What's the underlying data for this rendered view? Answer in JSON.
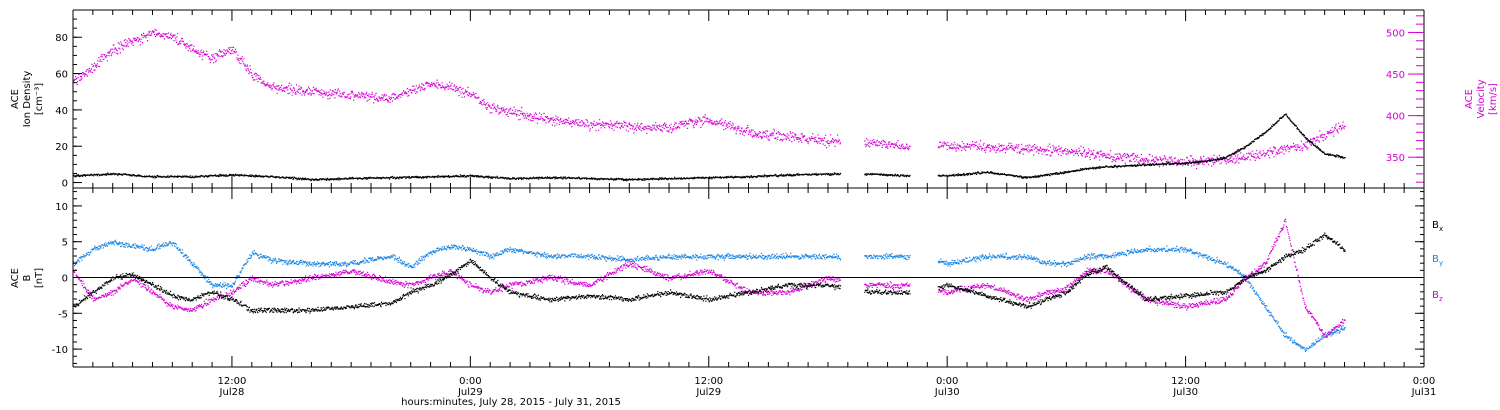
{
  "figure": {
    "xlabel": "hours:minutes, July 28, 2015 - July 31, 2015",
    "x_start_hour": 4,
    "x_end_hour": 72,
    "ticks": [
      {
        "hour": 12,
        "time": "12:00",
        "date": "Jul28"
      },
      {
        "hour": 24,
        "time": "0:00",
        "date": "Jul29"
      },
      {
        "hour": 36,
        "time": "12:00",
        "date": "Jul29"
      },
      {
        "hour": 48,
        "time": "0:00",
        "date": "Jul30"
      },
      {
        "hour": 60,
        "time": "12:00",
        "date": "Jul30"
      },
      {
        "hour": 72,
        "time": "0:00",
        "date": "Jul31"
      }
    ]
  },
  "chart_data": [
    {
      "type": "scatter",
      "title": "",
      "ylabel_lines": [
        "ACE",
        "Ion Density",
        "[cm⁻³]"
      ],
      "y2label_lines": [
        "ACE",
        "Velocity",
        "[km/s]"
      ],
      "ylim": [
        -3,
        95
      ],
      "yticks": [
        0,
        20,
        40,
        60,
        80
      ],
      "y2lim": [
        313,
        527
      ],
      "y2ticks": [
        350,
        400,
        450,
        500
      ],
      "colors": {
        "density": "#000000",
        "velocity": "#d600d6"
      },
      "gaps": [
        [
          42.6,
          43.8
        ],
        [
          46.1,
          47.5
        ]
      ],
      "series": [
        {
          "key": "density",
          "axis": "left",
          "color": "#000000",
          "x": [
            4,
            6,
            8,
            10,
            12,
            14,
            16,
            18,
            20,
            22,
            24,
            26,
            28,
            30,
            32,
            34,
            36,
            38,
            40,
            42,
            44,
            46,
            48,
            50,
            52,
            54,
            55,
            56,
            58,
            60,
            61,
            62,
            63,
            64,
            65,
            66,
            67,
            68
          ],
          "y": [
            4,
            5,
            3.5,
            3.5,
            4.5,
            3.5,
            2,
            2.5,
            3,
            3.5,
            4,
            2.5,
            3,
            2.5,
            2,
            2.5,
            3,
            3.5,
            4.5,
            5,
            5,
            4,
            4,
            6,
            3,
            6,
            8,
            9,
            10,
            11,
            12,
            14,
            20,
            28,
            38,
            25,
            16,
            14
          ]
        },
        {
          "key": "velocity",
          "axis": "right",
          "color": "#d600d6",
          "x": [
            4,
            5,
            6,
            7,
            8,
            9,
            10,
            11,
            12,
            13,
            14,
            16,
            18,
            20,
            21,
            22,
            23,
            24,
            25,
            26,
            28,
            30,
            32,
            34,
            35,
            36,
            38,
            40,
            42,
            44,
            46,
            48,
            50,
            52,
            54,
            56,
            58,
            60,
            62,
            64,
            66,
            68
          ],
          "y": [
            440,
            460,
            480,
            490,
            500,
            495,
            480,
            470,
            480,
            450,
            435,
            430,
            425,
            420,
            430,
            440,
            435,
            425,
            410,
            405,
            395,
            390,
            388,
            385,
            392,
            395,
            380,
            375,
            370,
            368,
            363,
            365,
            363,
            360,
            358,
            352,
            348,
            345,
            347,
            355,
            365,
            390
          ]
        }
      ]
    },
    {
      "type": "scatter",
      "title": "",
      "ylabel_lines": [
        "ACE",
        "B",
        "[nT]"
      ],
      "ylim": [
        -12.5,
        12.5
      ],
      "yticks": [
        -10,
        -5,
        0,
        5,
        10
      ],
      "zero_line": true,
      "gaps": [
        [
          42.6,
          43.8
        ],
        [
          46.1,
          47.5
        ]
      ],
      "series": [
        {
          "name": "B",
          "sub": "x",
          "color": "#000000",
          "x": [
            4,
            5,
            6,
            7,
            8,
            9,
            10,
            11,
            12,
            13,
            14,
            16,
            18,
            20,
            21,
            22,
            23,
            24,
            25,
            26,
            28,
            30,
            32,
            34,
            36,
            38,
            40,
            42,
            44,
            46,
            48,
            50,
            52,
            53,
            54,
            55,
            56,
            58,
            60,
            62,
            63,
            64,
            65,
            66,
            67,
            68
          ],
          "y": [
            -4,
            -2,
            0,
            0.5,
            -1,
            -2.5,
            -3,
            -2,
            -3,
            -4.5,
            -4.5,
            -4.5,
            -4,
            -3.5,
            -2,
            -1,
            0.5,
            2.5,
            0,
            -2,
            -3,
            -2.5,
            -3,
            -2,
            -3,
            -2,
            -1,
            -1,
            -2,
            -2,
            -1,
            -2.5,
            -4,
            -3,
            -2,
            0.5,
            1.5,
            -3,
            -2.5,
            -2,
            0,
            1,
            3,
            4,
            6,
            4
          ]
        },
        {
          "name": "B",
          "sub": "y",
          "color": "#1a86e6",
          "x": [
            4,
            5,
            6,
            7,
            8,
            9,
            10,
            11,
            12,
            13,
            14,
            16,
            18,
            20,
            21,
            22,
            23,
            24,
            25,
            26,
            28,
            30,
            32,
            34,
            36,
            38,
            40,
            42,
            44,
            46,
            48,
            50,
            52,
            53,
            54,
            55,
            56,
            58,
            60,
            62,
            63,
            64,
            65,
            66,
            67,
            68
          ],
          "y": [
            2,
            4,
            5,
            4.5,
            4,
            5,
            2,
            -1,
            -1,
            3.5,
            2.5,
            2,
            2,
            3,
            1.5,
            3.5,
            4.5,
            4,
            3,
            4,
            3,
            3,
            2.5,
            3,
            3,
            3,
            3,
            3,
            3,
            3,
            2,
            3,
            3,
            2,
            2,
            3,
            3,
            4,
            4,
            2,
            0,
            -4,
            -8,
            -10,
            -8,
            -7
          ]
        },
        {
          "name": "B",
          "sub": "z",
          "color": "#d600d6",
          "x": [
            4,
            5,
            6,
            7,
            8,
            9,
            10,
            11,
            12,
            13,
            14,
            16,
            18,
            20,
            21,
            22,
            23,
            24,
            25,
            26,
            28,
            30,
            32,
            34,
            36,
            38,
            40,
            42,
            44,
            46,
            48,
            50,
            52,
            53,
            54,
            55,
            56,
            58,
            60,
            62,
            63,
            64,
            65,
            66,
            67,
            68
          ],
          "y": [
            1,
            -3,
            -2,
            0,
            -2,
            -4,
            -4.5,
            -3,
            -2,
            0,
            -1,
            0,
            1,
            -0.5,
            -1,
            0,
            1,
            -1,
            -2,
            -1,
            0,
            -1,
            2,
            0,
            1,
            -2,
            -2,
            0,
            -1,
            -1,
            -2,
            -1,
            -3,
            -2,
            -1.5,
            1,
            1,
            -3,
            -4,
            -3,
            0,
            2,
            8,
            -4,
            -8,
            -6
          ]
        }
      ]
    }
  ]
}
